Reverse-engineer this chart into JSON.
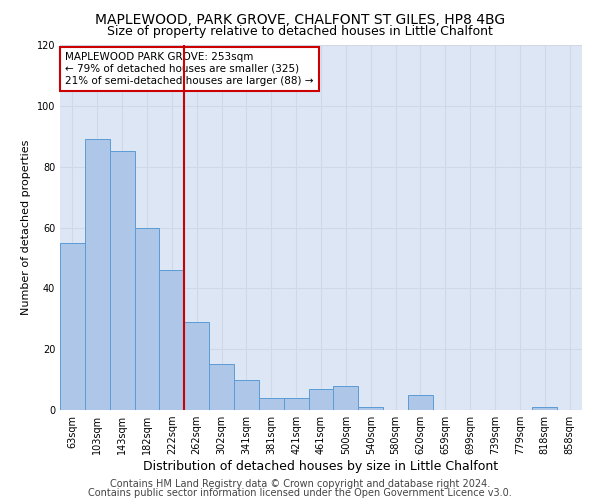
{
  "title": "MAPLEWOOD, PARK GROVE, CHALFONT ST GILES, HP8 4BG",
  "subtitle": "Size of property relative to detached houses in Little Chalfont",
  "xlabel": "Distribution of detached houses by size in Little Chalfont",
  "ylabel": "Number of detached properties",
  "categories": [
    "63sqm",
    "103sqm",
    "143sqm",
    "182sqm",
    "222sqm",
    "262sqm",
    "302sqm",
    "341sqm",
    "381sqm",
    "421sqm",
    "461sqm",
    "500sqm",
    "540sqm",
    "580sqm",
    "620sqm",
    "659sqm",
    "699sqm",
    "739sqm",
    "779sqm",
    "818sqm",
    "858sqm"
  ],
  "bar_heights": [
    55,
    89,
    85,
    60,
    46,
    29,
    15,
    10,
    4,
    4,
    7,
    8,
    1,
    0,
    5,
    0,
    0,
    0,
    0,
    1,
    0
  ],
  "bar_color": "#aec6e8",
  "bar_edge_color": "#5b9bd5",
  "vline_x_index": 5,
  "vline_color": "#cc0000",
  "annotation_text": "MAPLEWOOD PARK GROVE: 253sqm\n← 79% of detached houses are smaller (325)\n21% of semi-detached houses are larger (88) →",
  "annotation_box_color": "#ffffff",
  "annotation_box_edge_color": "#cc0000",
  "ylim": [
    0,
    120
  ],
  "yticks": [
    0,
    20,
    40,
    60,
    80,
    100,
    120
  ],
  "grid_color": "#d0d8e8",
  "background_color": "#dce6f5",
  "footer1": "Contains HM Land Registry data © Crown copyright and database right 2024.",
  "footer2": "Contains public sector information licensed under the Open Government Licence v3.0.",
  "title_fontsize": 10,
  "subtitle_fontsize": 9,
  "xlabel_fontsize": 9,
  "ylabel_fontsize": 8,
  "tick_fontsize": 7,
  "annotation_fontsize": 7.5,
  "footer_fontsize": 7
}
